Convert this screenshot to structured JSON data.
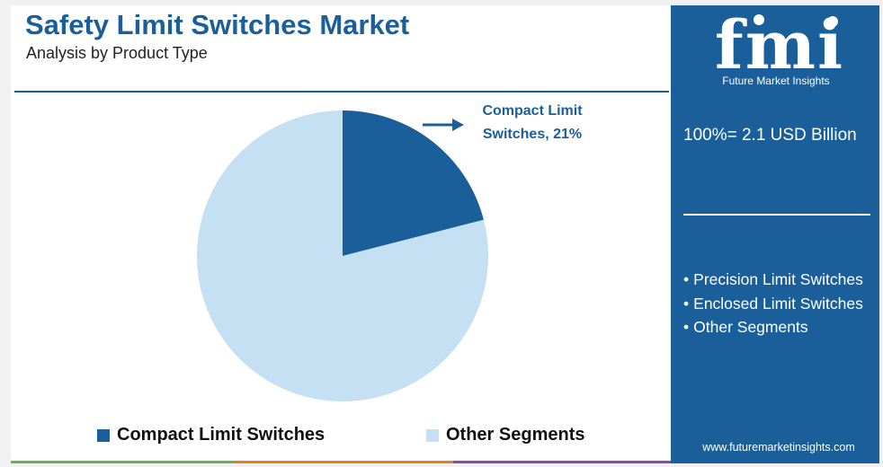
{
  "header": {
    "title": "Safety Limit Switches Market",
    "subtitle": "Analysis by Product Type"
  },
  "chart_data": {
    "type": "pie",
    "slices": [
      {
        "label": "Compact Limit Switches",
        "value": 21,
        "color": "#1a5f99"
      },
      {
        "label": "Other Segments",
        "value": 79,
        "color": "#c5e0f2"
      }
    ],
    "data_label": {
      "line1": "Compact Limit",
      "line2": "Switches, 21%"
    },
    "legend_position": "bottom"
  },
  "legend": {
    "items": [
      {
        "label": "Compact Limit Switches",
        "color": "#1a5f99"
      },
      {
        "label": "Other Segments",
        "color": "#c5e0f2"
      }
    ]
  },
  "sidebar": {
    "logo_text": "fmi",
    "logo_subtitle": "Future Market Insights",
    "total": "100%= 2.1 USD Billion",
    "segments": [
      {
        "bullet": "•",
        "text": "Precision Limit Switches"
      },
      {
        "bullet": "•",
        "text": "Enclosed Limit Switches"
      },
      {
        "bullet": "•",
        "text": "Other Segments"
      }
    ],
    "website": "www.futuremarketinsights.com"
  },
  "footer_colors": [
    "#6ab04c",
    "#e67e22",
    "#8e44ad",
    "#1a5f99"
  ]
}
